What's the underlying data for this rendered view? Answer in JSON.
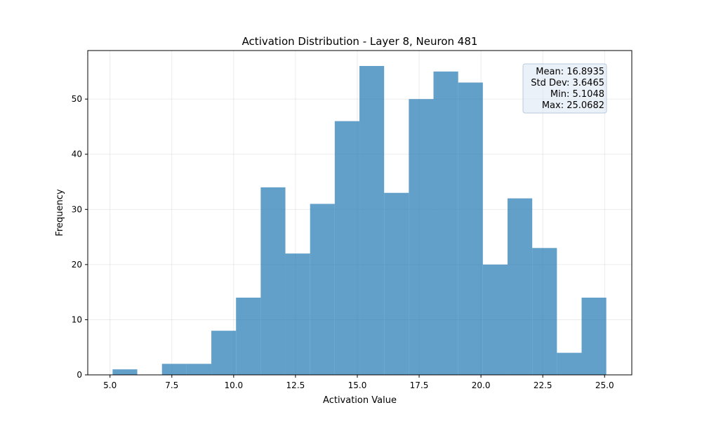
{
  "chart_data": {
    "type": "bar",
    "subtype": "histogram",
    "title": "Activation Distribution - Layer 8, Neuron 481",
    "xlabel": "Activation Value",
    "ylabel": "Frequency",
    "xlim": [
      4.1,
      26.1
    ],
    "ylim": [
      0,
      58.8
    ],
    "xticks": [
      5.0,
      7.5,
      10.0,
      12.5,
      15.0,
      17.5,
      20.0,
      22.5,
      25.0
    ],
    "xtick_labels": [
      "5.0",
      "7.5",
      "10.0",
      "12.5",
      "15.0",
      "17.5",
      "20.0",
      "22.5",
      "25.0"
    ],
    "yticks": [
      0,
      10,
      20,
      30,
      40,
      50
    ],
    "ytick_labels": [
      "0",
      "10",
      "20",
      "30",
      "40",
      "50"
    ],
    "grid": true,
    "bar_color": "#1f77b4",
    "bar_alpha": 0.7,
    "bin_edges": [
      5.1048,
      6.103,
      7.1012,
      8.0994,
      9.0975,
      10.0957,
      11.0939,
      12.0921,
      13.0903,
      14.0885,
      15.0865,
      16.0847,
      17.0829,
      18.0811,
      19.0793,
      20.0775,
      21.0757,
      22.0739,
      23.0721,
      24.0702,
      25.0682
    ],
    "values": [
      1,
      0,
      2,
      2,
      8,
      14,
      34,
      22,
      31,
      46,
      56,
      33,
      50,
      55,
      53,
      20,
      32,
      23,
      4,
      14
    ],
    "stats_box": {
      "lines": [
        "Mean: 16.8935",
        "Std Dev: 3.6465",
        "Min: 5.1048",
        "Max: 25.0682"
      ],
      "placement": "top-right",
      "background": "#dbe6f2",
      "border": "#b9c9dc"
    }
  }
}
